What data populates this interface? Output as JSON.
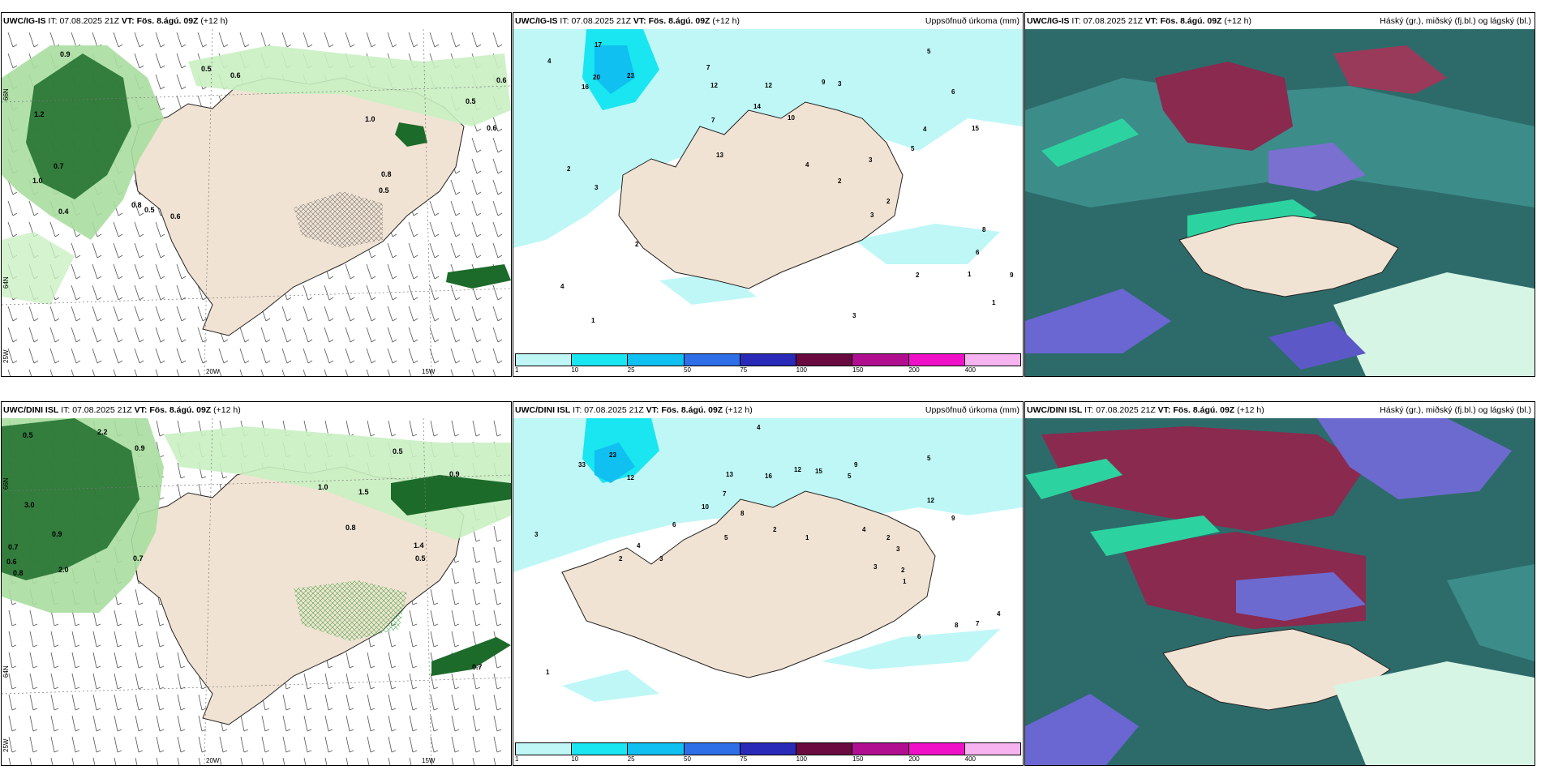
{
  "colorbar": {
    "colors": [
      "#bff7f7",
      "#19e6f0",
      "#10c0f0",
      "#2e6ee6",
      "#2a2ab8",
      "#6a0a40",
      "#b01090",
      "#f010c8",
      "#f6b3f0"
    ],
    "ticks": [
      "1",
      "10",
      "25",
      "50",
      "75",
      "100",
      "150",
      "200",
      "400"
    ]
  },
  "rows": [
    {
      "left": {
        "model": "UWC/IG-IS",
        "init_label": "IT:",
        "init": "07.08.2025 21Z",
        "valid_label": "VT:",
        "valid": "Fös. 8.ágú. 09Z",
        "lead": "(+12 h)",
        "lon_labels": [
          "20W",
          "15W"
        ],
        "lat_labels": [
          "66N",
          "64N",
          "25W"
        ],
        "cloud_values": [
          "0.9",
          "0.5",
          "0.6",
          "0.5",
          "0.6",
          "1.0",
          "0.8",
          "0.5",
          "0.4",
          "0.8",
          "0.5",
          "0.6",
          "0.7",
          "1.0",
          "1.2",
          "0.6"
        ]
      },
      "middle": {
        "model": "UWC/IG-IS",
        "init_label": "IT:",
        "init": "07.08.2025 21Z",
        "valid_label": "VT:",
        "valid": "Fös. 8.ágú. 09Z",
        "lead": "(+12 h)",
        "title": "Uppsöfnuð úrkoma (mm)",
        "values": [
          "17",
          "4",
          "20",
          "23",
          "16",
          "12",
          "9",
          "7",
          "5",
          "3",
          "1",
          "2",
          "3",
          "4",
          "6",
          "7",
          "10",
          "12",
          "13",
          "14",
          "15",
          "5",
          "3",
          "2",
          "4",
          "8",
          "9",
          "1",
          "6",
          "2",
          "3",
          "4",
          "1",
          "2",
          "3",
          "2"
        ]
      },
      "right": {
        "model": "UWC/IG-IS",
        "init_label": "IT:",
        "init": "07.08.2025 21Z",
        "valid_label": "VT:",
        "valid": "Fös. 8.ágú. 09Z",
        "lead": "(+12 h)",
        "title": "Háský (gr.), miðský (fj.bl.) og lágský (bl.)"
      }
    },
    {
      "left": {
        "model": "UWC/DINI ISL",
        "init_label": "IT:",
        "init": "07.08.2025 21Z",
        "valid_label": "VT:",
        "valid": "Fös. 8.ágú. 09Z",
        "lead": "(+12 h)",
        "lon_labels": [
          "20W",
          "15W"
        ],
        "lat_labels": [
          "66N",
          "64N",
          "25W"
        ],
        "cloud_values": [
          "0.5",
          "2.2",
          "0.9",
          "0.5",
          "1.0",
          "1.5",
          "0.9",
          "3.0",
          "0.7",
          "0.6",
          "0.8",
          "0.9",
          "2.0",
          "0.7",
          "0.8",
          "1.4",
          "0.5",
          "0.7"
        ]
      },
      "middle": {
        "model": "UWC/DINI ISL",
        "init_label": "IT:",
        "init": "07.08.2025 21Z",
        "valid_label": "VT:",
        "valid": "Fös. 8.ágú. 09Z",
        "lead": "(+12 h)",
        "title": "Uppsöfnuð úrkoma (mm)",
        "values": [
          "4",
          "23",
          "33",
          "12",
          "7",
          "5",
          "3",
          "2",
          "1",
          "13",
          "10",
          "12",
          "15",
          "9",
          "8",
          "6",
          "5",
          "4",
          "3",
          "2",
          "1",
          "7",
          "8",
          "4",
          "5",
          "3",
          "2",
          "1",
          "6",
          "4",
          "2",
          "3",
          "16",
          "12",
          "9"
        ]
      },
      "right": {
        "model": "UWC/DINI ISL",
        "init_label": "IT:",
        "init": "07.08.2025 21Z",
        "valid_label": "VT:",
        "valid": "Fös. 8.ágú. 09Z",
        "lead": "(+12 h)",
        "title": "Háský (gr.), miðský (fj.bl.) og lágský (bl.)"
      }
    }
  ]
}
